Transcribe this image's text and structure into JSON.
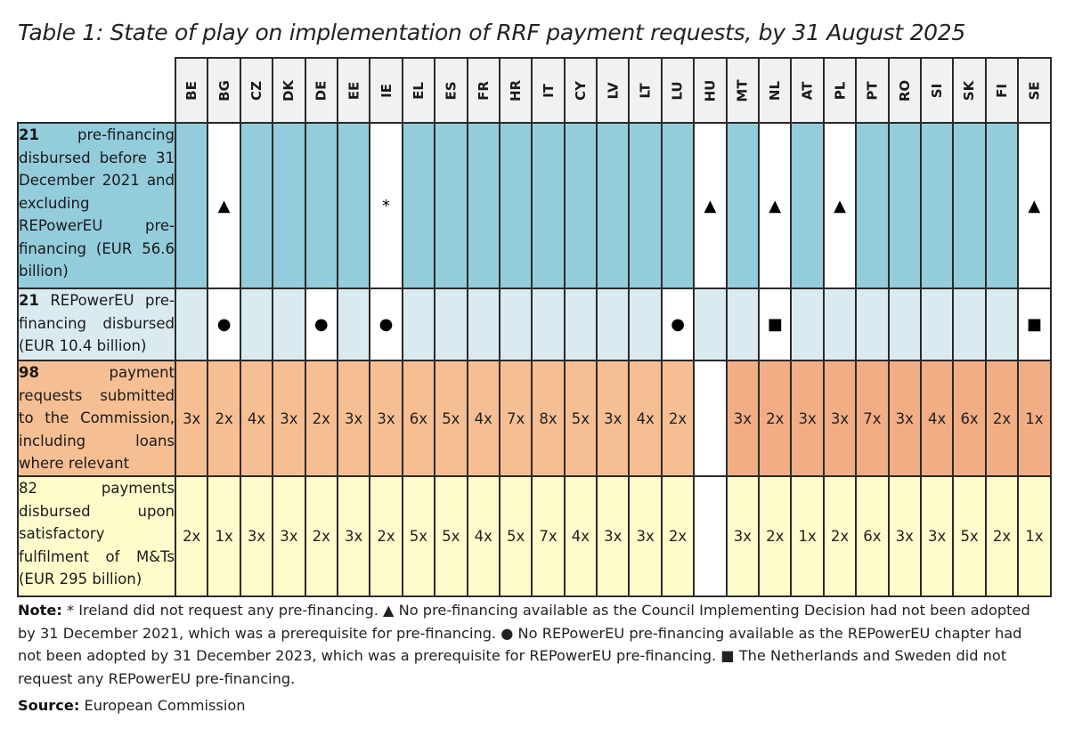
{
  "title": "Table 1: State of play on implementation of RRF payment requests, by 31 August 2025",
  "countries": [
    "BE",
    "BG",
    "CZ",
    "DK",
    "DE",
    "EE",
    "IE",
    "EL",
    "ES",
    "FR",
    "HR",
    "IT",
    "CY",
    "LV",
    "LT",
    "LU",
    "HU",
    "MT",
    "NL",
    "AT",
    "PL",
    "PT",
    "RO",
    "SI",
    "SK",
    "FI",
    "SE"
  ],
  "rows": [
    {
      "label_bold": "21",
      "label_text": " pre-financing disbursed before 31 December 2021 and excluding REPowerEU pre-financing (EUR 56.6 billion)",
      "color": "#93ccdb",
      "cells": [
        "",
        "▲",
        "",
        "",
        "",
        "",
        "*",
        "",
        "",
        "",
        "",
        "",
        "",
        "",
        "",
        "",
        "▲",
        "",
        "▲",
        "",
        "▲",
        "",
        "",
        "",
        "",
        "",
        "▲"
      ]
    },
    {
      "label_bold": "21",
      "label_text": " REPowerEU pre-financing disbursed (EUR 10.4 billion)",
      "color": "#d9ebf1",
      "cells": [
        "",
        "●",
        "",
        "",
        "●",
        "",
        "●",
        "",
        "",
        "",
        "",
        "",
        "",
        "",
        "",
        "●",
        "",
        "",
        "■",
        "",
        "",
        "",
        "",
        "",
        "",
        "",
        "■"
      ]
    },
    {
      "label_bold": "98",
      "label_text": " payment requests submitted to the Commission, including loans where relevant",
      "color": "#f6bf93",
      "cells": [
        "3x",
        "2x",
        "4x",
        "3x",
        "2x",
        "3x",
        "3x",
        "6x",
        "5x",
        "4x",
        "7x",
        "8x",
        "5x",
        "3x",
        "4x",
        "2x",
        "",
        "3x",
        "2x",
        "3x",
        "3x",
        "7x",
        "3x",
        "4x",
        "6x",
        "2x",
        "1x"
      ]
    },
    {
      "label_bold": "",
      "label_text": "82 payments disbursed upon satisfactory fulfilment of M&Ts (EUR 295 billion)",
      "color": "#fffccc",
      "cells": [
        "2x",
        "1x",
        "3x",
        "3x",
        "2x",
        "3x",
        "2x",
        "5x",
        "5x",
        "4x",
        "5x",
        "7x",
        "4x",
        "3x",
        "3x",
        "2x",
        "",
        "3x",
        "2x",
        "1x",
        "2x",
        "6x",
        "3x",
        "3x",
        "5x",
        "2x",
        "1x"
      ]
    }
  ],
  "white_cells": {
    "r1": [
      1,
      6,
      16,
      18,
      20,
      26
    ],
    "r2": [
      1,
      4,
      6,
      15,
      18,
      26
    ],
    "r3": [
      16
    ],
    "r4": [
      16
    ]
  },
  "note": {
    "label": "Note:",
    "text": " * Ireland did not request any pre-financing. ▲ No pre-financing available as the Council Implementing Decision had not been adopted by 31 December 2021, which was a prerequisite for pre-financing. ● No REPowerEU pre-financing available as the REPowerEU chapter had not been adopted by 31 December 2023, which was a prerequisite for REPowerEU pre-financing. ■ The Netherlands and Sweden did not request any REPowerEU pre-financing."
  },
  "source": {
    "label": "Source:",
    "text": " European Commission"
  }
}
